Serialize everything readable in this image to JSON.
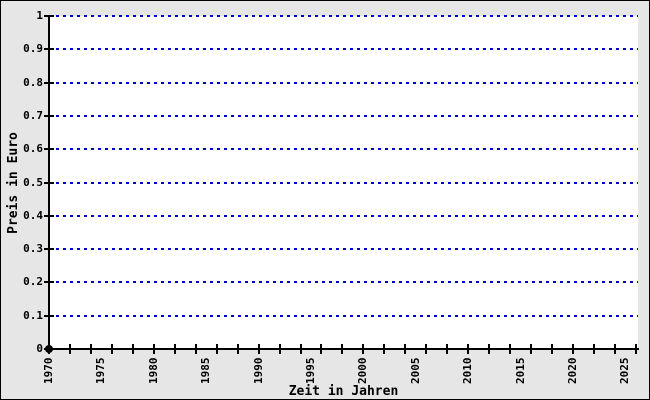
{
  "window": {
    "background_color": "#e6e6e6",
    "plot_background_color": "#ffffff",
    "border_color": "#000000"
  },
  "chart_data": {
    "type": "scatter",
    "title": "",
    "xlabel": "Zeit in Jahren",
    "ylabel": "Preis in Euro",
    "xlim": [
      1970,
      2026.2
    ],
    "ylim": [
      0,
      1
    ],
    "grid": {
      "horizontal": true,
      "vertical": false,
      "line_style": "dashed",
      "color": "#0000cc"
    },
    "axis_color": "#000000",
    "x_minor_tick_step_years": 2,
    "x_ticks": {
      "start": 1970,
      "end": 2026,
      "step": 2
    },
    "x_labels": [
      {
        "year": 1970,
        "label": "1970"
      },
      {
        "year": 1975,
        "label": "1975"
      },
      {
        "year": 1980,
        "label": "1980"
      },
      {
        "year": 1985,
        "label": "1985"
      },
      {
        "year": 1990,
        "label": "1990"
      },
      {
        "year": 1995,
        "label": "1995"
      },
      {
        "year": 2000,
        "label": "2000"
      },
      {
        "year": 2005,
        "label": "2005"
      },
      {
        "year": 2010,
        "label": "2010"
      },
      {
        "year": 2015,
        "label": "2015"
      },
      {
        "year": 2020,
        "label": "2020"
      },
      {
        "year": 2025,
        "label": "2025"
      }
    ],
    "y_ticks": [
      {
        "value": 0,
        "label": "0"
      },
      {
        "value": 0.1,
        "label": "0.1"
      },
      {
        "value": 0.2,
        "label": "0.2"
      },
      {
        "value": 0.3,
        "label": "0.3"
      },
      {
        "value": 0.4,
        "label": "0.4"
      },
      {
        "value": 0.5,
        "label": "0.5"
      },
      {
        "value": 0.6,
        "label": "0.6"
      },
      {
        "value": 0.7,
        "label": "0.7"
      },
      {
        "value": 0.8,
        "label": "0.8"
      },
      {
        "value": 0.9,
        "label": "0.9"
      },
      {
        "value": 1,
        "label": "1"
      }
    ],
    "points": [
      {
        "x": 1970,
        "y": 0,
        "color": "#000000"
      }
    ],
    "series": []
  }
}
